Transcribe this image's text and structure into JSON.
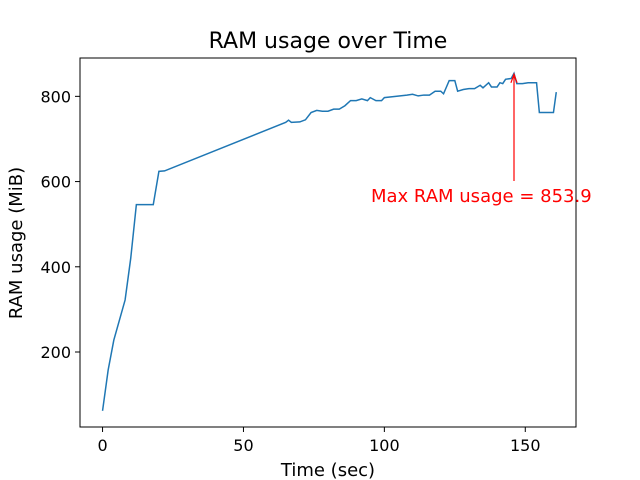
{
  "chart_data": {
    "type": "line",
    "title": "RAM usage over Time",
    "x_label": "Time (sec)",
    "y_label": "RAM usage (MiB)",
    "annotation": "Max RAM usage = 853.9",
    "xlim": [
      -8,
      168
    ],
    "ylim": [
      24,
      890
    ],
    "xticks": [
      0,
      50,
      100,
      150
    ],
    "yticks": [
      200,
      400,
      600,
      800
    ],
    "series": [
      {
        "color": "#1f77b4",
        "x": [
          0,
          2,
          4,
          6,
          8,
          10,
          12,
          18,
          20,
          22,
          65,
          66,
          67,
          70,
          72,
          74,
          76,
          78,
          80,
          82,
          84,
          86,
          88,
          90,
          92,
          94,
          95,
          97,
          99,
          100,
          104,
          108,
          110,
          112,
          114,
          116,
          118,
          120,
          121,
          123,
          125,
          126,
          128,
          130,
          132,
          134,
          135,
          137,
          138,
          140,
          141,
          142,
          143,
          145,
          146,
          147,
          149,
          151,
          154,
          155,
          158,
          160,
          161
        ],
        "values": [
          62,
          158,
          228,
          275,
          322,
          420,
          546,
          546,
          624,
          625,
          739,
          744,
          739,
          740,
          745,
          762,
          767,
          765,
          765,
          770,
          770,
          778,
          790,
          790,
          794,
          790,
          797,
          790,
          790,
          797,
          800,
          803,
          805,
          801,
          803,
          803,
          812,
          812,
          806,
          837,
          837,
          812,
          816,
          818,
          818,
          826,
          820,
          832,
          822,
          822,
          832,
          830,
          840,
          842,
          853.9,
          830,
          830,
          832,
          832,
          762,
          762,
          762,
          810
        ]
      }
    ]
  }
}
